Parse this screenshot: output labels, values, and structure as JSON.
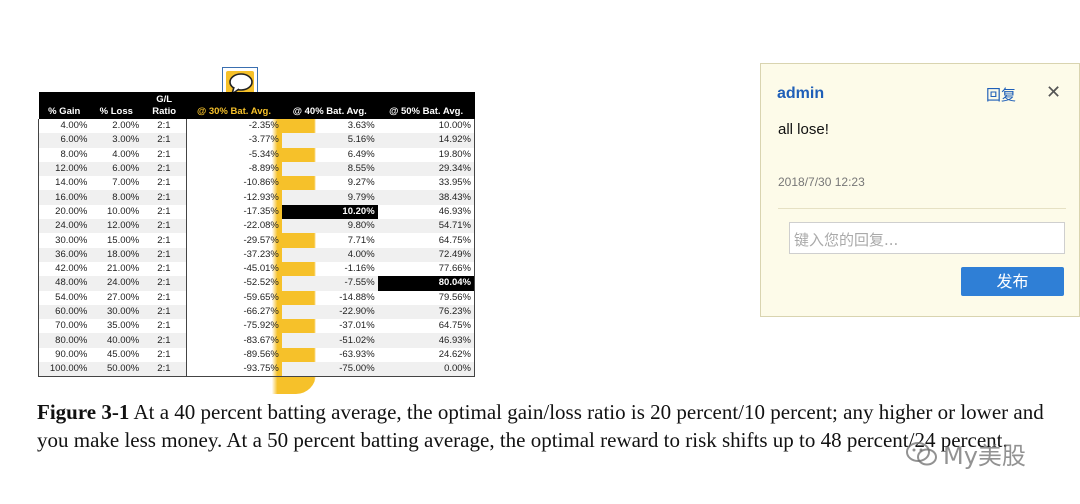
{
  "table": {
    "headers": [
      "% Gain",
      "% Loss",
      "G/L\nRatio",
      "@ 30% Bat. Avg.",
      "@ 40% Bat. Avg.",
      "@ 50% Bat. Avg."
    ],
    "rows": [
      [
        "4.00%",
        "2.00%",
        "2:1",
        "-2.35%",
        "3.63%",
        "10.00%"
      ],
      [
        "6.00%",
        "3.00%",
        "2:1",
        "-3.77%",
        "5.16%",
        "14.92%"
      ],
      [
        "8.00%",
        "4.00%",
        "2:1",
        "-5.34%",
        "6.49%",
        "19.80%"
      ],
      [
        "12.00%",
        "6.00%",
        "2:1",
        "-8.89%",
        "8.55%",
        "29.34%"
      ],
      [
        "14.00%",
        "7.00%",
        "2:1",
        "-10.86%",
        "9.27%",
        "33.95%"
      ],
      [
        "16.00%",
        "8.00%",
        "2:1",
        "-12.93%",
        "9.79%",
        "38.43%"
      ],
      [
        "20.00%",
        "10.00%",
        "2:1",
        "-17.35%",
        "10.20%",
        "46.93%"
      ],
      [
        "24.00%",
        "12.00%",
        "2:1",
        "-22.08%",
        "9.80%",
        "54.71%"
      ],
      [
        "30.00%",
        "15.00%",
        "2:1",
        "-29.57%",
        "7.71%",
        "64.75%"
      ],
      [
        "36.00%",
        "18.00%",
        "2:1",
        "-37.23%",
        "4.00%",
        "72.49%"
      ],
      [
        "42.00%",
        "21.00%",
        "2:1",
        "-45.01%",
        "-1.16%",
        "77.66%"
      ],
      [
        "48.00%",
        "24.00%",
        "2:1",
        "-52.52%",
        "-7.55%",
        "80.04%"
      ],
      [
        "54.00%",
        "27.00%",
        "2:1",
        "-59.65%",
        "-14.88%",
        "79.56%"
      ],
      [
        "60.00%",
        "30.00%",
        "2:1",
        "-66.27%",
        "-22.90%",
        "76.23%"
      ],
      [
        "70.00%",
        "35.00%",
        "2:1",
        "-75.92%",
        "-37.01%",
        "64.75%"
      ],
      [
        "80.00%",
        "40.00%",
        "2:1",
        "-83.67%",
        "-51.02%",
        "46.93%"
      ],
      [
        "90.00%",
        "45.00%",
        "2:1",
        "-89.56%",
        "-63.93%",
        "24.62%"
      ],
      [
        "100.00%",
        "50.00%",
        "2:1",
        "-93.75%",
        "-75.00%",
        "0.00%"
      ]
    ],
    "highlighted_cells": [
      {
        "row": 6,
        "col": 4
      },
      {
        "row": 11,
        "col": 5
      }
    ],
    "highlight_color": "#f6c12a"
  },
  "caption": {
    "label": "Figure 3-1",
    "text": " At a 40 percent batting average, the optimal gain/loss ratio is 20 percent/10 percent; any higher or lower and you make less money. At a 50 percent batting average, the optimal reward to risk shifts up to 48 percent/24 percent."
  },
  "watermark": {
    "text": "My美股",
    "icon": "wechat-icon"
  },
  "comment": {
    "anchor_icon": "comment-bubble-icon",
    "author": "admin",
    "reply_label": "回复",
    "close_icon": "close-icon",
    "close_glyph": "✕",
    "body": "all lose!",
    "date": "2018/7/30  12:23",
    "reply_placeholder": "键入您的回复...",
    "submit_label": "发布",
    "colors": {
      "panel_bg": "#fdfbe9",
      "link": "#1f5fb8",
      "submit_bg": "#2f7fd6"
    }
  }
}
